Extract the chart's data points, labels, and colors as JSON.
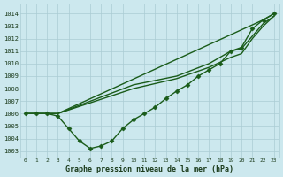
{
  "xlabel": "Graphe pression niveau de la mer (hPa)",
  "xlim": [
    -0.5,
    23.5
  ],
  "ylim": [
    1002.5,
    1014.8
  ],
  "yticks": [
    1003,
    1004,
    1005,
    1006,
    1007,
    1008,
    1009,
    1010,
    1011,
    1012,
    1013,
    1014
  ],
  "xticks": [
    0,
    1,
    2,
    3,
    4,
    5,
    6,
    7,
    8,
    9,
    10,
    11,
    12,
    13,
    14,
    15,
    16,
    17,
    18,
    19,
    20,
    21,
    22,
    23
  ],
  "bg_color": "#cce8ee",
  "grid_color": "#aaccd4",
  "line_color": "#1a5c1a",
  "series": [
    {
      "x": [
        0,
        1,
        2,
        3,
        4,
        5,
        6,
        7,
        8,
        9,
        10,
        11,
        12,
        13,
        14,
        15,
        16,
        17,
        18,
        19,
        20,
        21,
        22,
        23
      ],
      "y": [
        1006,
        1006,
        1006,
        1005.8,
        1004.8,
        1003.8,
        1003.2,
        1003.4,
        1003.8,
        1004.8,
        1005.5,
        1006.0,
        1006.5,
        1007.2,
        1007.8,
        1008.3,
        1009.0,
        1009.5,
        1010.0,
        1011.0,
        1011.3,
        1012.8,
        1013.5,
        1014.0
      ],
      "marker": "D",
      "markersize": 2.5,
      "linewidth": 1.0
    },
    {
      "x": [
        0,
        3,
        22,
        23
      ],
      "y": [
        1006,
        1006,
        1013.5,
        1014.0
      ],
      "marker": null,
      "markersize": 0,
      "linewidth": 1.0
    },
    {
      "x": [
        0,
        3,
        10,
        14,
        17,
        19,
        20,
        21,
        22,
        23
      ],
      "y": [
        1006,
        1006,
        1008.3,
        1009.0,
        1010.0,
        1011.0,
        1011.2,
        1012.2,
        1013.2,
        1013.8
      ],
      "marker": null,
      "markersize": 0,
      "linewidth": 1.0
    },
    {
      "x": [
        0,
        3,
        10,
        14,
        17,
        19,
        20,
        21,
        22,
        23
      ],
      "y": [
        1006,
        1006,
        1008.0,
        1008.8,
        1009.7,
        1010.5,
        1010.8,
        1012.0,
        1013.0,
        1013.8
      ],
      "marker": null,
      "markersize": 0,
      "linewidth": 1.0
    }
  ]
}
